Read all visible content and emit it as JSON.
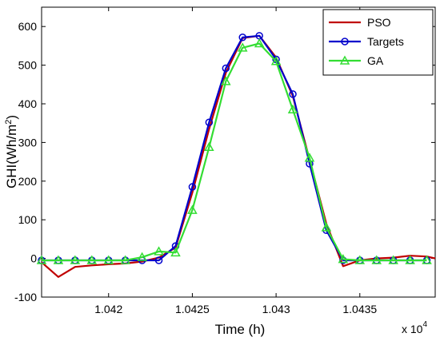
{
  "chart_data": {
    "type": "line",
    "title": "",
    "xlabel": "Time (h)",
    "ylabel": "GHI(Wh/m",
    "ylabel_superscript": "2",
    "ylabel_close": ")",
    "x_multiplier": "x 10",
    "x_multiplier_exp": "4",
    "xlim": [
      10416,
      10439.5
    ],
    "ylim": [
      -100,
      650
    ],
    "grid": false,
    "legend_position": "top-right",
    "x_ticks": [
      10420,
      10425,
      10430,
      10435
    ],
    "x_tick_labels": [
      "1.042",
      "1.0425",
      "1.043",
      "1.0435"
    ],
    "y_ticks": [
      -100,
      0,
      100,
      200,
      300,
      400,
      500,
      600
    ],
    "y_tick_labels": [
      "-100",
      "0",
      "100",
      "200",
      "300",
      "400",
      "500",
      "600"
    ],
    "series": [
      {
        "name": "PSO",
        "color": "#c00000",
        "marker": "none",
        "x": [
          10416,
          10417,
          10418,
          10419,
          10420,
          10421,
          10422,
          10423,
          10424,
          10425,
          10426,
          10427,
          10428,
          10429,
          10430,
          10431,
          10432,
          10433,
          10434,
          10435,
          10436,
          10437,
          10438,
          10439,
          10439.5
        ],
        "y": [
          -10,
          -48,
          -22,
          -18,
          -15,
          -13,
          -8,
          2,
          28,
          170,
          335,
          480,
          570,
          576,
          520,
          420,
          255,
          90,
          -20,
          -5,
          0,
          2,
          7,
          5,
          0
        ]
      },
      {
        "name": "Targets",
        "color": "#0000cc",
        "marker": "circle",
        "x": [
          10416,
          10417,
          10418,
          10419,
          10420,
          10421,
          10422,
          10423,
          10424,
          10425,
          10426,
          10427,
          10428,
          10429,
          10430,
          10431,
          10432,
          10433,
          10434,
          10435,
          10436,
          10437,
          10438,
          10439
        ],
        "y": [
          -5,
          -5,
          -5,
          -5,
          -5,
          -5,
          -5,
          -5,
          32,
          185,
          352,
          492,
          572,
          576,
          515,
          425,
          245,
          73,
          -5,
          -5,
          -5,
          -5,
          -5,
          -5
        ]
      },
      {
        "name": "GA",
        "color": "#33dd33",
        "marker": "triangle",
        "x": [
          10416,
          10417,
          10418,
          10419,
          10420,
          10421,
          10422,
          10423,
          10424,
          10425,
          10426,
          10427,
          10428,
          10429,
          10430,
          10431,
          10432,
          10433,
          10434,
          10435,
          10436,
          10437,
          10438,
          10439
        ],
        "y": [
          -5,
          -5,
          -5,
          -5,
          -5,
          -5,
          3,
          18,
          15,
          125,
          288,
          458,
          545,
          556,
          510,
          385,
          260,
          80,
          -2,
          -5,
          -5,
          -5,
          -5,
          -5
        ]
      }
    ]
  }
}
